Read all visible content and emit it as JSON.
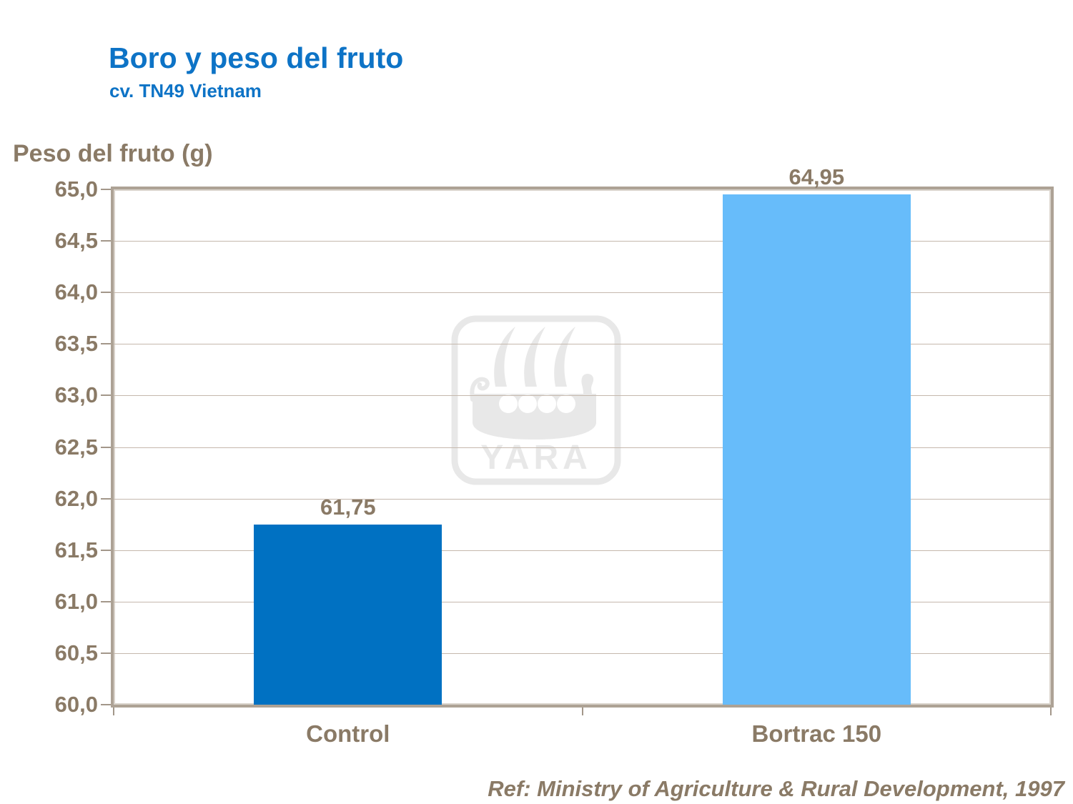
{
  "header": {
    "title": "Boro y peso del fruto",
    "subtitle": "cv. TN49 Vietnam"
  },
  "y_axis_title": "Peso del fruto (g)",
  "footer": {
    "reference": "Ref: Ministry of Agriculture & Rural Development, 1997"
  },
  "watermark": {
    "brand": "YARA"
  },
  "colors": {
    "title_blue": "#0d73c6",
    "text_brown": "#8a7a66",
    "bar_control": "#0071c2",
    "bar_bortrac": "#67bcfa",
    "plot_border": "#ada295",
    "gridline": "#c5b8ad",
    "watermark_gray": "#e8e8e8"
  },
  "chart_data": {
    "type": "bar",
    "categories": [
      "Control",
      "Bortrac 150"
    ],
    "values": [
      61.75,
      64.95
    ],
    "value_labels": [
      "61,75",
      "64,95"
    ],
    "series_colors": [
      "#0071c2",
      "#67bcfa"
    ],
    "title": "Boro y peso del fruto",
    "subtitle": "cv. TN49 Vietnam",
    "xlabel": "",
    "ylabel": "Peso del fruto (g)",
    "ylim": [
      60.0,
      65.0
    ],
    "ytick_step": 0.5,
    "ytick_labels_top_to_bottom": [
      "65,0",
      "64,5",
      "64,0",
      "63,5",
      "63,0",
      "62,5",
      "62,0",
      "61,5",
      "61,0",
      "60,5",
      "60,0"
    ],
    "decimal_separator": ",",
    "grid": true,
    "legend": false
  }
}
